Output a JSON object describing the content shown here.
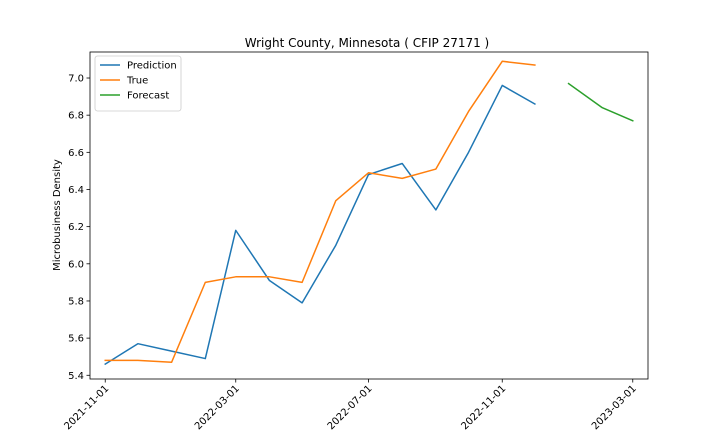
{
  "chart_data": {
    "type": "line",
    "title": "Wright County, Minnesota ( CFIP 27171 )",
    "xlabel": "",
    "ylabel": "Microbusiness Density",
    "x_axis_type": "date",
    "xlim": [
      "2021-10-18",
      "2023-03-15"
    ],
    "ylim": [
      5.38,
      7.14
    ],
    "x_ticks": [
      "2021-11-01",
      "2022-03-01",
      "2022-07-01",
      "2022-11-01",
      "2023-03-01"
    ],
    "y_ticks": [
      5.4,
      5.6,
      5.8,
      6.0,
      6.2,
      6.4,
      6.6,
      6.8,
      7.0
    ],
    "y_tick_labels": [
      "5.4",
      "5.6",
      "5.8",
      "6.0",
      "6.2",
      "6.4",
      "6.6",
      "6.8",
      "7.0"
    ],
    "grid": false,
    "legend_position": "top-left",
    "series": [
      {
        "name": "Prediction",
        "color": "#1f77b4",
        "x": [
          "2021-11-01",
          "2021-12-01",
          "2022-01-01",
          "2022-02-01",
          "2022-03-01",
          "2022-04-01",
          "2022-05-01",
          "2022-06-01",
          "2022-07-01",
          "2022-08-01",
          "2022-09-01",
          "2022-10-01",
          "2022-11-01",
          "2022-12-01"
        ],
        "values": [
          5.46,
          5.57,
          5.53,
          5.49,
          6.18,
          5.91,
          5.79,
          6.1,
          6.48,
          6.54,
          6.29,
          6.6,
          6.96,
          6.86
        ]
      },
      {
        "name": "True",
        "color": "#ff7f0e",
        "x": [
          "2021-11-01",
          "2021-12-01",
          "2022-01-01",
          "2022-02-01",
          "2022-03-01",
          "2022-04-01",
          "2022-05-01",
          "2022-06-01",
          "2022-07-01",
          "2022-08-01",
          "2022-09-01",
          "2022-10-01",
          "2022-11-01",
          "2022-12-01"
        ],
        "values": [
          5.48,
          5.48,
          5.47,
          5.9,
          5.93,
          5.93,
          5.9,
          6.34,
          6.49,
          6.46,
          6.51,
          6.82,
          7.09,
          7.07
        ]
      },
      {
        "name": "Forecast",
        "color": "#2ca02c",
        "x": [
          "2023-01-01",
          "2023-02-01",
          "2023-03-01"
        ],
        "values": [
          6.97,
          6.84,
          6.77
        ]
      }
    ]
  }
}
